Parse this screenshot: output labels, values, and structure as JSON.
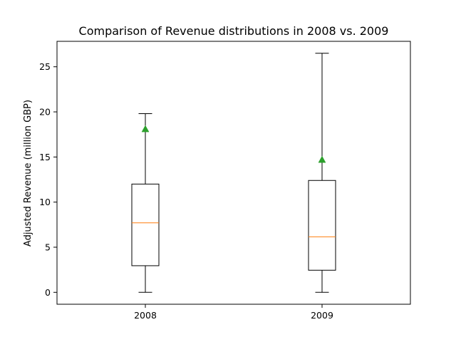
{
  "chart_data": {
    "type": "box",
    "title": "Comparison of Revenue distributions in 2008 vs. 2009",
    "xlabel": "",
    "ylabel": "Adjusted Revenue (million GBP)",
    "categories": [
      "2008",
      "2009"
    ],
    "boxes": [
      {
        "category": "2008",
        "whisker_low": 0,
        "q1": 2.95,
        "median": 7.7,
        "q3": 12.0,
        "whisker_high": 19.8,
        "mean": 18.1
      },
      {
        "category": "2009",
        "whisker_low": 0,
        "q1": 2.45,
        "median": 6.15,
        "q3": 12.4,
        "whisker_high": 26.5,
        "mean": 14.7
      }
    ],
    "ylim": [
      -1.32,
      27.82
    ],
    "yticks": [
      0,
      5,
      10,
      15,
      20,
      25
    ],
    "grid": false,
    "colors": {
      "box": "#000000",
      "median": "#ff7f0e",
      "mean_marker": "#2ca02c"
    }
  }
}
